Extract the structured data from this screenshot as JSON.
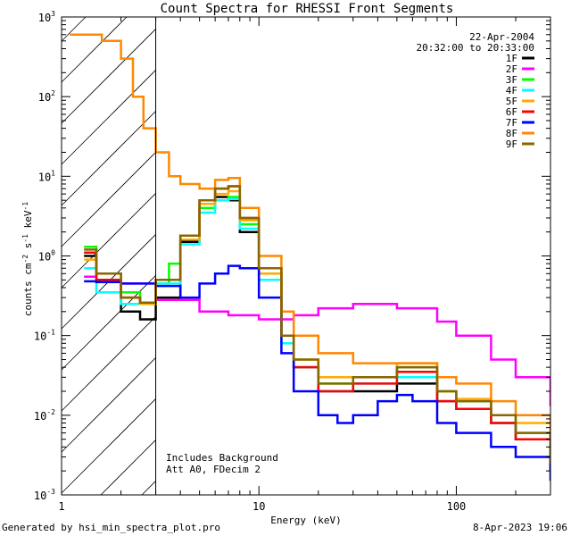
{
  "chart_data": {
    "type": "line",
    "title": "Count Spectra for RHESSI Front Segments",
    "xlabel": "Energy (keV)",
    "ylabel": "counts cm-2 s-1 keV-1",
    "ylabel_parts": {
      "base": "counts cm",
      "exp1": "-2",
      "mid1": " s",
      "exp2": "-1",
      "mid2": " keV",
      "exp3": "-1"
    },
    "xscale": "log",
    "yscale": "log",
    "xlim": [
      1,
      300
    ],
    "ylim": [
      0.001,
      1000
    ],
    "xticks": [
      {
        "v": 1,
        "label": "1"
      },
      {
        "v": 10,
        "label": "10"
      },
      {
        "v": 100,
        "label": "100"
      }
    ],
    "yticks": [
      {
        "v": 0.001,
        "base": "10",
        "exp": "-3"
      },
      {
        "v": 0.01,
        "base": "10",
        "exp": "-2"
      },
      {
        "v": 0.1,
        "base": "10",
        "exp": "-1"
      },
      {
        "v": 1,
        "base": "10",
        "exp": "0"
      },
      {
        "v": 10,
        "base": "10",
        "exp": "1"
      },
      {
        "v": 100,
        "base": "10",
        "exp": "2"
      },
      {
        "v": 1000,
        "base": "10",
        "exp": "3"
      }
    ],
    "date": "22-Apr-2004",
    "time_range": "20:32:00 to 20:33:00",
    "shaded_region_kev": [
      1,
      3
    ],
    "annotations": [
      "Includes Background",
      "Att A0, FDecim 2"
    ],
    "series": [
      {
        "name": "1F",
        "color": "#000000",
        "points": [
          [
            1.3,
            1.0
          ],
          [
            1.5,
            0.5
          ],
          [
            2.0,
            0.2
          ],
          [
            2.5,
            0.16
          ],
          [
            3.0,
            0.3
          ],
          [
            4.0,
            1.5
          ],
          [
            5.0,
            4.0
          ],
          [
            6.0,
            5.5
          ],
          [
            7.0,
            5.0
          ],
          [
            8.0,
            2.0
          ],
          [
            10,
            0.5
          ],
          [
            13,
            0.1
          ],
          [
            15,
            0.04
          ],
          [
            20,
            0.02
          ],
          [
            30,
            0.02
          ],
          [
            50,
            0.025
          ],
          [
            80,
            0.015
          ],
          [
            100,
            0.012
          ],
          [
            150,
            0.008
          ],
          [
            200,
            0.005
          ],
          [
            300,
            0.002
          ]
        ]
      },
      {
        "name": "2F",
        "color": "#ff00ff",
        "points": [
          [
            1.3,
            0.55
          ],
          [
            1.5,
            0.5
          ],
          [
            2.0,
            0.45
          ],
          [
            3.0,
            0.28
          ],
          [
            5.0,
            0.2
          ],
          [
            7.0,
            0.18
          ],
          [
            10,
            0.16
          ],
          [
            15,
            0.18
          ],
          [
            20,
            0.22
          ],
          [
            30,
            0.25
          ],
          [
            50,
            0.22
          ],
          [
            80,
            0.15
          ],
          [
            100,
            0.1
          ],
          [
            150,
            0.05
          ],
          [
            200,
            0.03
          ],
          [
            300,
            0.013
          ]
        ]
      },
      {
        "name": "3F",
        "color": "#00ff00",
        "points": [
          [
            1.3,
            1.3
          ],
          [
            1.5,
            0.6
          ],
          [
            2.0,
            0.35
          ],
          [
            2.5,
            0.25
          ],
          [
            3.0,
            0.45
          ],
          [
            3.5,
            0.8
          ],
          [
            4.0,
            1.8
          ],
          [
            5.0,
            4.0
          ],
          [
            6.0,
            5.0
          ],
          [
            7.0,
            5.5
          ],
          [
            8.0,
            2.5
          ],
          [
            10,
            0.6
          ],
          [
            13,
            0.1
          ],
          [
            15,
            0.04
          ],
          [
            20,
            0.025
          ],
          [
            30,
            0.03
          ],
          [
            50,
            0.04
          ],
          [
            80,
            0.02
          ],
          [
            100,
            0.015
          ],
          [
            150,
            0.01
          ],
          [
            200,
            0.006
          ],
          [
            300,
            0.002
          ]
        ]
      },
      {
        "name": "4F",
        "color": "#00ffff",
        "points": [
          [
            1.3,
            0.7
          ],
          [
            1.5,
            0.35
          ],
          [
            2.0,
            0.25
          ],
          [
            2.5,
            0.25
          ],
          [
            3.0,
            0.45
          ],
          [
            4.0,
            1.4
          ],
          [
            5.0,
            3.5
          ],
          [
            6.0,
            5.0
          ],
          [
            7.0,
            5.2
          ],
          [
            8.0,
            2.2
          ],
          [
            10,
            0.5
          ],
          [
            13,
            0.08
          ],
          [
            15,
            0.04
          ],
          [
            20,
            0.02
          ],
          [
            30,
            0.025
          ],
          [
            50,
            0.03
          ],
          [
            80,
            0.015
          ],
          [
            100,
            0.012
          ],
          [
            150,
            0.008
          ],
          [
            200,
            0.005
          ],
          [
            300,
            0.002
          ]
        ]
      },
      {
        "name": "5F",
        "color": "#ffaa00",
        "points": [
          [
            1.3,
            0.9
          ],
          [
            1.5,
            0.5
          ],
          [
            2.0,
            0.3
          ],
          [
            2.5,
            0.25
          ],
          [
            3.0,
            0.5
          ],
          [
            4.0,
            1.6
          ],
          [
            5.0,
            4.5
          ],
          [
            6.0,
            6.0
          ],
          [
            7.0,
            6.5
          ],
          [
            8.0,
            2.8
          ],
          [
            10,
            0.6
          ],
          [
            13,
            0.1
          ],
          [
            15,
            0.05
          ],
          [
            20,
            0.03
          ],
          [
            30,
            0.03
          ],
          [
            50,
            0.045
          ],
          [
            80,
            0.02
          ],
          [
            100,
            0.016
          ],
          [
            150,
            0.01
          ],
          [
            200,
            0.008
          ],
          [
            300,
            0.003
          ]
        ]
      },
      {
        "name": "6F",
        "color": "#ff0000",
        "points": [
          [
            1.3,
            1.1
          ],
          [
            1.5,
            0.5
          ],
          [
            2.0,
            0.3
          ],
          [
            2.5,
            0.26
          ],
          [
            3.0,
            0.5
          ],
          [
            4.0,
            1.8
          ],
          [
            5.0,
            5.0
          ],
          [
            6.0,
            7.0
          ],
          [
            7.0,
            7.5
          ],
          [
            8.0,
            3.0
          ],
          [
            10,
            0.7
          ],
          [
            13,
            0.1
          ],
          [
            15,
            0.04
          ],
          [
            20,
            0.02
          ],
          [
            30,
            0.025
          ],
          [
            50,
            0.035
          ],
          [
            80,
            0.015
          ],
          [
            100,
            0.012
          ],
          [
            150,
            0.008
          ],
          [
            200,
            0.005
          ],
          [
            300,
            0.002
          ]
        ]
      },
      {
        "name": "7F",
        "color": "#0000ff",
        "points": [
          [
            1.3,
            0.48
          ],
          [
            1.5,
            0.47
          ],
          [
            2.0,
            0.45
          ],
          [
            2.5,
            0.45
          ],
          [
            3.0,
            0.42
          ],
          [
            4.0,
            0.3
          ],
          [
            5.0,
            0.45
          ],
          [
            6.0,
            0.6
          ],
          [
            7.0,
            0.75
          ],
          [
            8.0,
            0.7
          ],
          [
            10,
            0.3
          ],
          [
            13,
            0.06
          ],
          [
            15,
            0.02
          ],
          [
            20,
            0.01
          ],
          [
            25,
            0.008
          ],
          [
            30,
            0.01
          ],
          [
            40,
            0.015
          ],
          [
            50,
            0.018
          ],
          [
            60,
            0.015
          ],
          [
            80,
            0.008
          ],
          [
            100,
            0.006
          ],
          [
            150,
            0.004
          ],
          [
            200,
            0.003
          ],
          [
            300,
            0.0015
          ]
        ]
      },
      {
        "name": "8F",
        "color": "#ff8800",
        "points": [
          [
            1.1,
            600
          ],
          [
            1.6,
            500
          ],
          [
            2.0,
            300
          ],
          [
            2.3,
            100
          ],
          [
            2.6,
            40
          ],
          [
            3.0,
            20
          ],
          [
            3.5,
            10
          ],
          [
            4.0,
            8
          ],
          [
            5.0,
            7
          ],
          [
            6.0,
            9
          ],
          [
            7.0,
            9.5
          ],
          [
            8.0,
            4.0
          ],
          [
            10,
            1.0
          ],
          [
            13,
            0.2
          ],
          [
            15,
            0.1
          ],
          [
            20,
            0.06
          ],
          [
            30,
            0.045
          ],
          [
            50,
            0.045
          ],
          [
            80,
            0.03
          ],
          [
            100,
            0.025
          ],
          [
            150,
            0.015
          ],
          [
            200,
            0.01
          ],
          [
            300,
            0.004
          ]
        ]
      },
      {
        "name": "9F",
        "color": "#886600",
        "points": [
          [
            1.3,
            1.2
          ],
          [
            1.5,
            0.6
          ],
          [
            2.0,
            0.3
          ],
          [
            2.5,
            0.26
          ],
          [
            3.0,
            0.5
          ],
          [
            4.0,
            1.8
          ],
          [
            5.0,
            5.0
          ],
          [
            6.0,
            7.0
          ],
          [
            7.0,
            7.5
          ],
          [
            8.0,
            3.0
          ],
          [
            10,
            0.7
          ],
          [
            13,
            0.1
          ],
          [
            15,
            0.05
          ],
          [
            20,
            0.025
          ],
          [
            30,
            0.03
          ],
          [
            50,
            0.04
          ],
          [
            80,
            0.02
          ],
          [
            100,
            0.015
          ],
          [
            150,
            0.01
          ],
          [
            200,
            0.006
          ],
          [
            300,
            0.0025
          ]
        ]
      }
    ]
  },
  "footer": {
    "generated_by": "Generated by hsi_min_spectra_plot.pro",
    "timestamp": "8-Apr-2023 19:06"
  }
}
